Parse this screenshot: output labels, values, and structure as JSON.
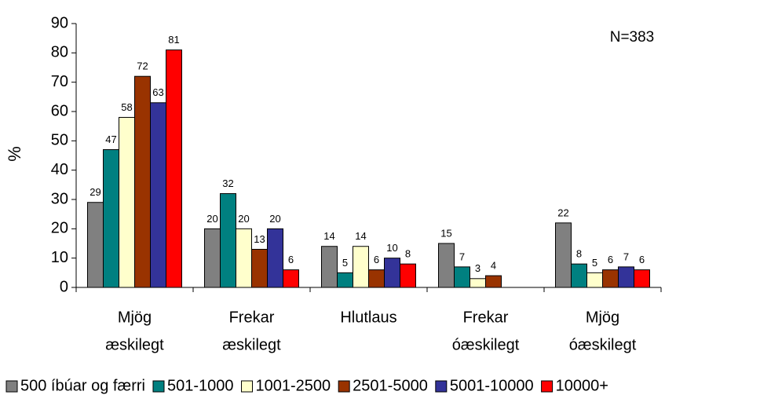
{
  "chart_data": {
    "type": "bar",
    "annotation": "N=383",
    "y_label": "%",
    "categories": [
      [
        "Mjög",
        "æskilegt"
      ],
      [
        "Frekar",
        "æskilegt"
      ],
      [
        "Hlutlaus"
      ],
      [
        "Frekar",
        "óæskilegt"
      ],
      [
        "Mjög",
        "óæskilegt"
      ]
    ],
    "series": [
      {
        "name": "500 íbúar og færri",
        "color": "#808080",
        "values": [
          29,
          20,
          14,
          15,
          22
        ]
      },
      {
        "name": "501-1000",
        "color": "#008080",
        "values": [
          47,
          32,
          5,
          7,
          8
        ]
      },
      {
        "name": "1001-2500",
        "color": "#ffffcc",
        "values": [
          58,
          20,
          14,
          3,
          5
        ]
      },
      {
        "name": "2501-5000",
        "color": "#993300",
        "values": [
          72,
          13,
          6,
          4,
          6
        ]
      },
      {
        "name": "5001-10000",
        "color": "#333399",
        "values": [
          63,
          20,
          10,
          null,
          7
        ]
      },
      {
        "name": "10000+",
        "color": "#ff0000",
        "values": [
          81,
          6,
          8,
          null,
          6
        ]
      }
    ],
    "ylim": [
      0,
      90
    ],
    "yticks": [
      0,
      10,
      20,
      30,
      40,
      50,
      60,
      70,
      80,
      90
    ],
    "legend": "bottom"
  }
}
